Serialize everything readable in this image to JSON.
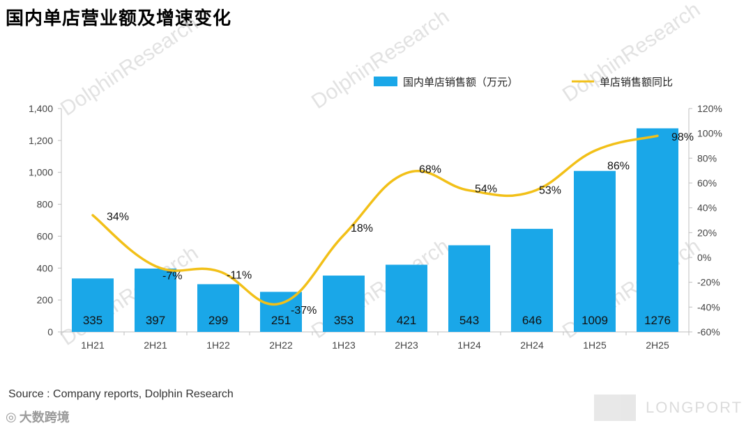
{
  "title": "国内单店营业额及增速变化",
  "source": "Source : Company reports, Dolphin Research",
  "watermarks": {
    "text": "DolphinResearch",
    "logo_text": "大数跨境",
    "brand_text": "LONGPORT"
  },
  "colors": {
    "bar": "#1aa7e8",
    "line": "#f2c018",
    "bar_label": "#111111",
    "axis_text": "#444444"
  },
  "chart_data": {
    "type": "bar",
    "categories": [
      "1H21",
      "2H21",
      "1H22",
      "2H22",
      "1H23",
      "2H23",
      "1H24",
      "2H24",
      "1H25",
      "2H25"
    ],
    "series": [
      {
        "name": "国内单店销售额（万元）",
        "type": "bar",
        "axis": "left",
        "values": [
          335,
          397,
          299,
          251,
          353,
          421,
          543,
          646,
          1009,
          1276
        ],
        "labels": [
          "335",
          "397",
          "299",
          "251",
          "353",
          "421",
          "543",
          "646",
          "1009",
          "1276"
        ]
      },
      {
        "name": "单店销售额同比",
        "type": "line",
        "axis": "right",
        "values": [
          34,
          -7,
          -11,
          -37,
          18,
          68,
          54,
          53,
          86,
          98
        ],
        "labels": [
          "34%",
          "-7%",
          "-11%",
          "-37%",
          "18%",
          "68%",
          "54%",
          "53%",
          "86%",
          "98%"
        ]
      }
    ],
    "y_left": {
      "min": 0,
      "max": 1400,
      "ticks": [
        "0",
        "200",
        "400",
        "600",
        "800",
        "1,000",
        "1,200",
        "1,400"
      ],
      "tick_values": [
        0,
        200,
        400,
        600,
        800,
        1000,
        1200,
        1400
      ]
    },
    "y_right": {
      "min": -60,
      "max": 120,
      "ticks": [
        "-60%",
        "-40%",
        "-20%",
        "0%",
        "20%",
        "40%",
        "60%",
        "80%",
        "100%",
        "120%"
      ],
      "tick_values": [
        -60,
        -40,
        -20,
        0,
        20,
        40,
        60,
        80,
        100,
        120
      ]
    },
    "legend_position": "top-right",
    "grid": false
  }
}
